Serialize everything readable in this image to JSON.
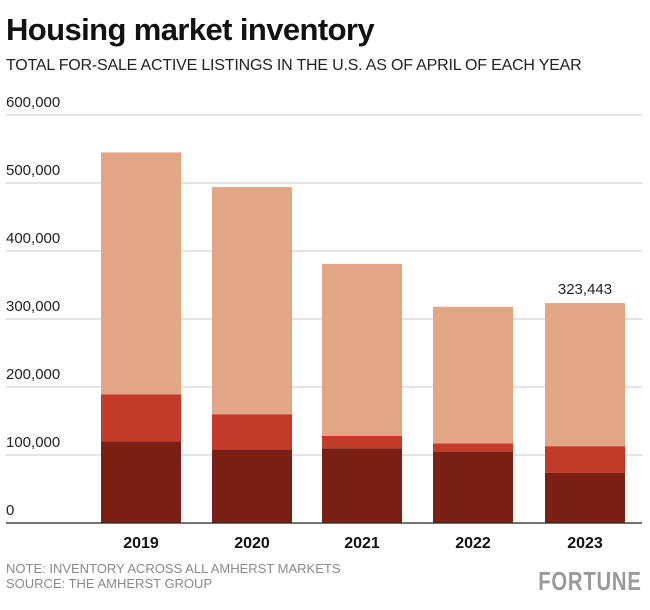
{
  "header": {
    "title": "Housing market inventory",
    "subtitle": "TOTAL FOR-SALE ACTIVE LISTINGS IN THE U.S. AS OF APRIL OF EACH YEAR"
  },
  "footer": {
    "note": "NOTE: INVENTORY ACROSS ALL AMHERST MARKETS",
    "source": "SOURCE: THE AMHERST GROUP",
    "brand": "FORTUNE"
  },
  "colors": {
    "dark": "#7a1f14",
    "mid": "#c43a28",
    "light": "#e2a585",
    "grid": "#c8c8c8",
    "axis": "#222222"
  },
  "chart_data": {
    "type": "bar",
    "stacked": true,
    "categories": [
      "2019",
      "2020",
      "2021",
      "2022",
      "2023"
    ],
    "series": [
      {
        "values": [
          120000,
          108000,
          110000,
          105000,
          74000
        ]
      },
      {
        "values": [
          69000,
          52000,
          18000,
          12000,
          39000
        ]
      },
      {
        "values": [
          356000,
          334000,
          253000,
          201000,
          210443
        ]
      }
    ],
    "totals": [
      545000,
      494000,
      381000,
      318000,
      323443
    ],
    "annotations": [
      {
        "category": "2023",
        "text": "323,443"
      }
    ],
    "yticks": [
      "0",
      "100,000",
      "200,000",
      "300,000",
      "400,000",
      "500,000",
      "600,000"
    ],
    "ylim": [
      0,
      600000
    ],
    "grid": true,
    "legend": "none"
  }
}
